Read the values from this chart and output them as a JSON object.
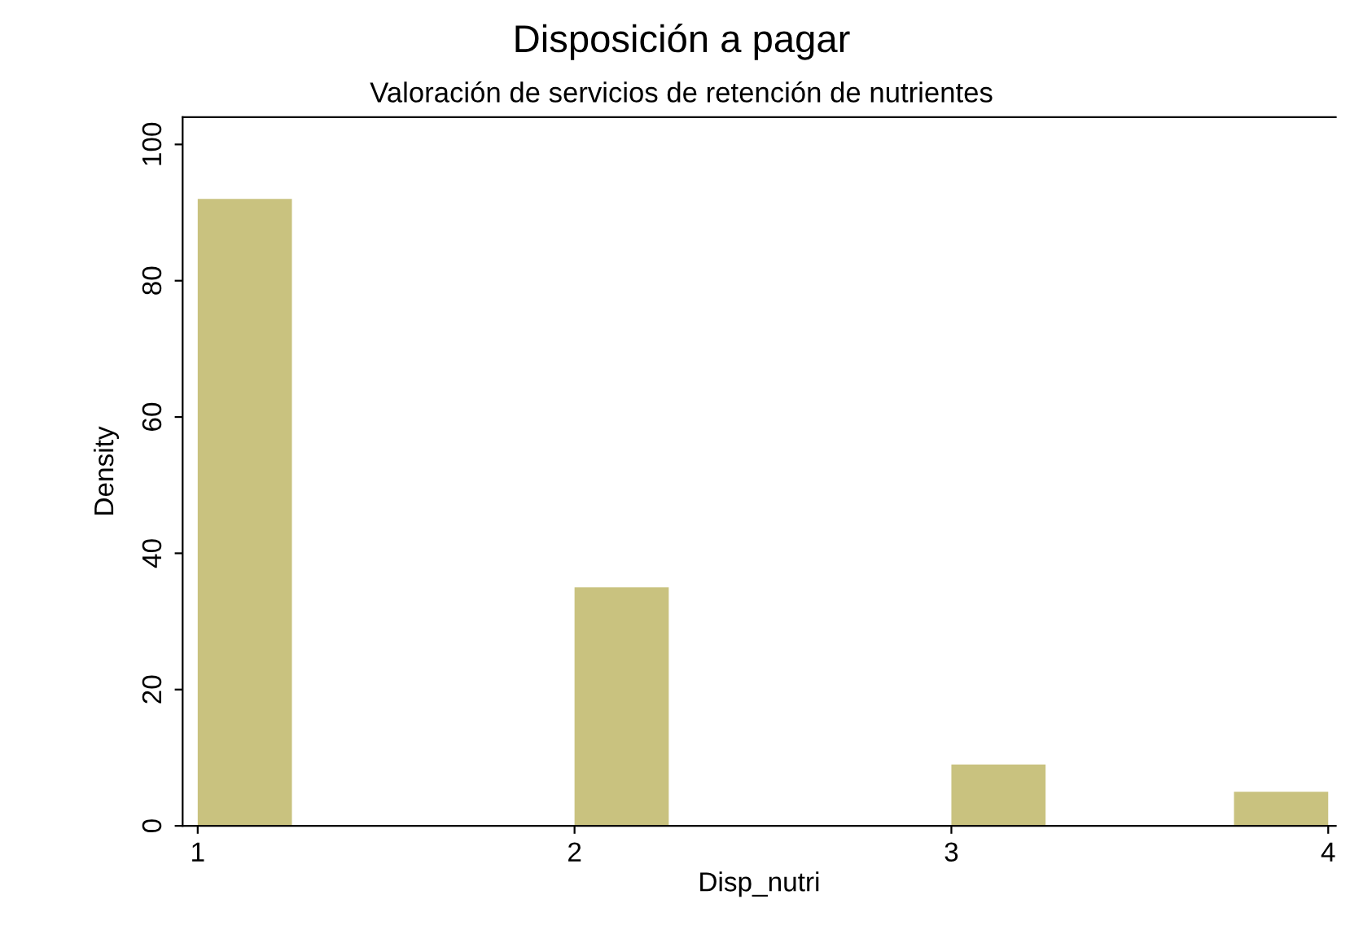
{
  "chart_data": {
    "type": "histogram",
    "title": "Disposición a pagar",
    "subtitle": "Valoración de servicios de retención de nutrientes",
    "xlabel": "Disp_nutri",
    "ylabel": "Density",
    "bins": [
      1,
      1.25,
      1.5,
      1.75,
      2,
      2.25,
      2.5,
      2.75,
      3,
      3.25,
      3.5,
      3.75,
      4
    ],
    "values": [
      92,
      0,
      0,
      0,
      35,
      0,
      0,
      0,
      9,
      0,
      0,
      5
    ],
    "color": "#c9c27f",
    "xlim": [
      0.96,
      4.02
    ],
    "xticks": [
      1,
      2,
      3,
      4
    ],
    "ylim": [
      0,
      104
    ],
    "yticks": [
      0,
      20,
      40,
      60,
      80,
      100
    ],
    "grid": false
  }
}
